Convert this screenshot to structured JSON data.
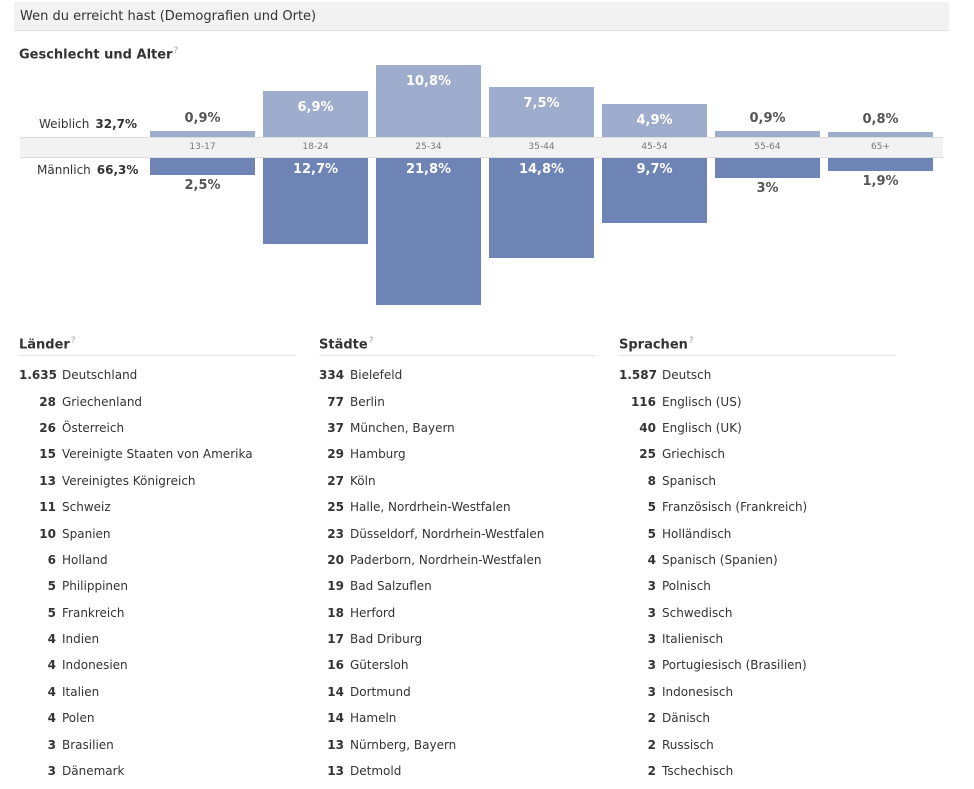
{
  "header": {
    "title": "Wen du erreicht hast (Demografien und Orte)"
  },
  "help_mark": "?",
  "gender_age": {
    "title": "Geschlecht und Alter",
    "female": {
      "label": "Weiblich",
      "total": "32,7%"
    },
    "male": {
      "label": "Männlich",
      "total": "66,3%"
    }
  },
  "chart_data": {
    "type": "bar",
    "categories": [
      "13-17",
      "18-24",
      "25-34",
      "35-44",
      "45-54",
      "55-64",
      "65+"
    ],
    "series": [
      {
        "name": "Weiblich",
        "values": [
          0.9,
          6.9,
          10.8,
          7.5,
          4.9,
          0.9,
          0.8
        ],
        "labels": [
          "0,9%",
          "6,9%",
          "10,8%",
          "7,5%",
          "4,9%",
          "0,9%",
          "0,8%"
        ]
      },
      {
        "name": "Männlich",
        "values": [
          2.5,
          12.7,
          21.8,
          14.8,
          9.7,
          3,
          1.9
        ],
        "labels": [
          "2,5%",
          "12,7%",
          "21,8%",
          "14,8%",
          "9,7%",
          "3%",
          "1,9%"
        ]
      }
    ],
    "colors": {
      "female": "#9eadcd",
      "male": "#6d84b4"
    }
  },
  "countries": {
    "title": "Länder",
    "items": [
      {
        "count": "1.635",
        "name": "Deutschland"
      },
      {
        "count": "28",
        "name": "Griechenland"
      },
      {
        "count": "26",
        "name": "Österreich"
      },
      {
        "count": "15",
        "name": "Vereinigte Staaten von Amerika"
      },
      {
        "count": "13",
        "name": "Vereinigtes Königreich"
      },
      {
        "count": "11",
        "name": "Schweiz"
      },
      {
        "count": "10",
        "name": "Spanien"
      },
      {
        "count": "6",
        "name": "Holland"
      },
      {
        "count": "5",
        "name": "Philippinen"
      },
      {
        "count": "5",
        "name": "Frankreich"
      },
      {
        "count": "4",
        "name": "Indien"
      },
      {
        "count": "4",
        "name": "Indonesien"
      },
      {
        "count": "4",
        "name": "Italien"
      },
      {
        "count": "4",
        "name": "Polen"
      },
      {
        "count": "3",
        "name": "Brasilien"
      },
      {
        "count": "3",
        "name": "Dänemark"
      }
    ]
  },
  "cities": {
    "title": "Städte",
    "items": [
      {
        "count": "334",
        "name": "Bielefeld"
      },
      {
        "count": "77",
        "name": "Berlin"
      },
      {
        "count": "37",
        "name": "München, Bayern"
      },
      {
        "count": "29",
        "name": "Hamburg"
      },
      {
        "count": "27",
        "name": "Köln"
      },
      {
        "count": "25",
        "name": "Halle, Nordrhein-Westfalen"
      },
      {
        "count": "23",
        "name": "Düsseldorf, Nordrhein-Westfalen"
      },
      {
        "count": "20",
        "name": "Paderborn, Nordrhein-Westfalen"
      },
      {
        "count": "19",
        "name": "Bad Salzuflen"
      },
      {
        "count": "18",
        "name": "Herford"
      },
      {
        "count": "17",
        "name": "Bad Driburg"
      },
      {
        "count": "16",
        "name": "Gütersloh"
      },
      {
        "count": "14",
        "name": "Dortmund"
      },
      {
        "count": "14",
        "name": "Hameln"
      },
      {
        "count": "13",
        "name": "Nürnberg, Bayern"
      },
      {
        "count": "13",
        "name": "Detmold"
      }
    ]
  },
  "languages": {
    "title": "Sprachen",
    "items": [
      {
        "count": "1.587",
        "name": "Deutsch"
      },
      {
        "count": "116",
        "name": "Englisch (US)"
      },
      {
        "count": "40",
        "name": "Englisch (UK)"
      },
      {
        "count": "25",
        "name": "Griechisch"
      },
      {
        "count": "8",
        "name": "Spanisch"
      },
      {
        "count": "5",
        "name": "Französisch (Frankreich)"
      },
      {
        "count": "5",
        "name": "Holländisch"
      },
      {
        "count": "4",
        "name": "Spanisch (Spanien)"
      },
      {
        "count": "3",
        "name": "Polnisch"
      },
      {
        "count": "3",
        "name": "Schwedisch"
      },
      {
        "count": "3",
        "name": "Italienisch"
      },
      {
        "count": "3",
        "name": "Portugiesisch (Brasilien)"
      },
      {
        "count": "3",
        "name": "Indonesisch"
      },
      {
        "count": "2",
        "name": "Dänisch"
      },
      {
        "count": "2",
        "name": "Russisch"
      },
      {
        "count": "2",
        "name": "Tschechisch"
      }
    ]
  }
}
